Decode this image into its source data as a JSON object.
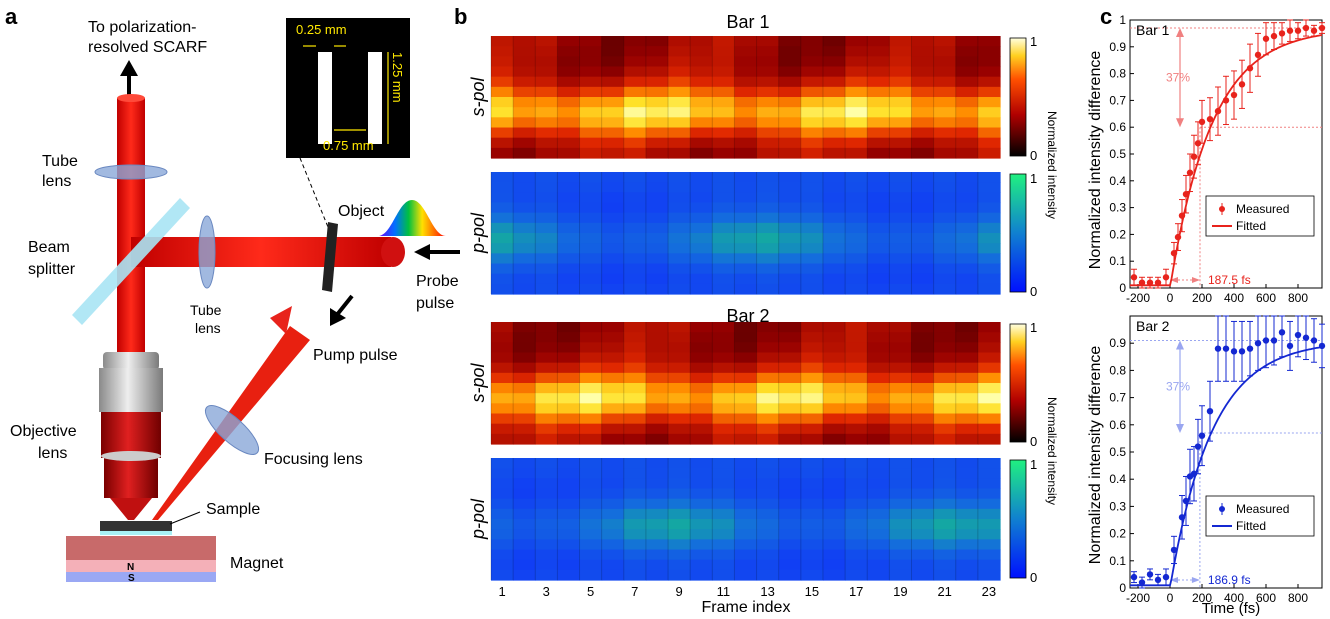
{
  "panel_a": {
    "letter": "a",
    "output_label_1": "To polarization-",
    "output_label_2": "resolved SCARF",
    "inset": {
      "dim_gap": "0.25 mm",
      "dim_height": "1.25 mm",
      "dim_sep": "0.75 mm"
    },
    "tube_lens_top": "Tube",
    "tube_lens_bottom": "lens",
    "beam_splitter_1": "Beam",
    "beam_splitter_2": "splitter",
    "tube_lens2_1": "Tube",
    "tube_lens2_2": "lens",
    "object": "Object",
    "probe_1": "Probe",
    "probe_2": "pulse",
    "pump": "Pump pulse",
    "objective_1": "Objective",
    "objective_2": "lens",
    "focusing": "Focusing lens",
    "sample": "Sample",
    "magnet": "Magnet",
    "pole_n": "N",
    "pole_s": "S"
  },
  "panel_b": {
    "letter": "b",
    "bar1_title": "Bar 1",
    "bar2_title": "Bar 2",
    "s_pol": "s-pol",
    "p_pol": "p-pol",
    "colorbar_label": "Normalized intensity",
    "cb_max": "1",
    "cb_min": "0",
    "xlabel": "Frame index",
    "frames": 23,
    "xticks": [
      "1",
      "3",
      "5",
      "7",
      "9",
      "11",
      "13",
      "15",
      "17",
      "19",
      "21",
      "23"
    ],
    "colors": {
      "hot_dark": "#3a0000",
      "hot_mid": "#e02000",
      "hot_bright": "#ffff40",
      "cool_low": "#1030ff",
      "cool_high": "#20e090"
    }
  },
  "panel_c": {
    "letter": "c",
    "ylabel": "Normalized intensity difference",
    "xlabel": "Time (fs)",
    "chart_data": [
      {
        "type": "scatter",
        "title": "Bar 1",
        "color": "#e8231c",
        "annotation_color": "#f08080",
        "legend": [
          "Measured",
          "Fitted"
        ],
        "xlim": [
          -250,
          950
        ],
        "ylim": [
          0,
          1
        ],
        "xticks": [
          "-200",
          "0",
          "200",
          "400",
          "600",
          "800"
        ],
        "yticks": [
          "0",
          "0.1",
          "0.2",
          "0.3",
          "0.4",
          "0.5",
          "0.6",
          "0.7",
          "0.8",
          "0.9",
          "1"
        ],
        "pct_label": "37%",
        "tau_label": "187.5 fs",
        "tau": 187.5,
        "rise_level": 0.6,
        "top_level": 0.97,
        "x": [
          -225,
          -175,
          -125,
          -75,
          -25,
          25,
          50,
          75,
          100,
          125,
          150,
          175,
          200,
          250,
          300,
          350,
          400,
          450,
          500,
          550,
          600,
          650,
          700,
          750,
          800,
          850,
          900,
          950
        ],
        "y": [
          0.04,
          0.02,
          0.02,
          0.02,
          0.04,
          0.13,
          0.19,
          0.27,
          0.35,
          0.43,
          0.49,
          0.54,
          0.62,
          0.63,
          0.66,
          0.7,
          0.72,
          0.76,
          0.82,
          0.87,
          0.93,
          0.94,
          0.95,
          0.96,
          0.96,
          0.97,
          0.96,
          0.97
        ],
        "err": [
          0.03,
          0.02,
          0.02,
          0.02,
          0.03,
          0.04,
          0.05,
          0.06,
          0.07,
          0.07,
          0.08,
          0.08,
          0.08,
          0.08,
          0.09,
          0.09,
          0.09,
          0.09,
          0.09,
          0.08,
          0.06,
          0.05,
          0.04,
          0.04,
          0.03,
          0.03,
          0.02,
          0.02
        ]
      },
      {
        "type": "scatter",
        "title": "Bar 2",
        "color": "#1428d2",
        "annotation_color": "#9aa6f0",
        "legend": [
          "Measured",
          "Fitted"
        ],
        "xlim": [
          -250,
          950
        ],
        "ylim": [
          0,
          1
        ],
        "xticks": [
          "-200",
          "0",
          "200",
          "400",
          "600",
          "800"
        ],
        "yticks": [
          "0",
          "0.1",
          "0.2",
          "0.3",
          "0.4",
          "0.5",
          "0.6",
          "0.7",
          "0.8",
          "0.9"
        ],
        "pct_label": "37%",
        "tau_label": "186.9 fs",
        "tau": 186.9,
        "rise_level": 0.57,
        "top_level": 0.91,
        "x": [
          -225,
          -175,
          -125,
          -75,
          -25,
          25,
          75,
          100,
          125,
          150,
          175,
          200,
          250,
          300,
          350,
          400,
          450,
          500,
          550,
          600,
          650,
          700,
          750,
          800,
          850,
          900,
          950
        ],
        "y": [
          0.04,
          0.02,
          0.05,
          0.03,
          0.04,
          0.14,
          0.26,
          0.32,
          0.41,
          0.42,
          0.52,
          0.56,
          0.65,
          0.88,
          0.88,
          0.87,
          0.87,
          0.88,
          0.9,
          0.91,
          0.91,
          0.94,
          0.89,
          0.93,
          0.92,
          0.91,
          0.89
        ],
        "err": [
          0.02,
          0.02,
          0.02,
          0.02,
          0.03,
          0.05,
          0.08,
          0.09,
          0.1,
          0.1,
          0.1,
          0.11,
          0.11,
          0.12,
          0.12,
          0.11,
          0.11,
          0.1,
          0.1,
          0.1,
          0.09,
          0.09,
          0.09,
          0.08,
          0.08,
          0.08,
          0.08
        ]
      }
    ]
  }
}
